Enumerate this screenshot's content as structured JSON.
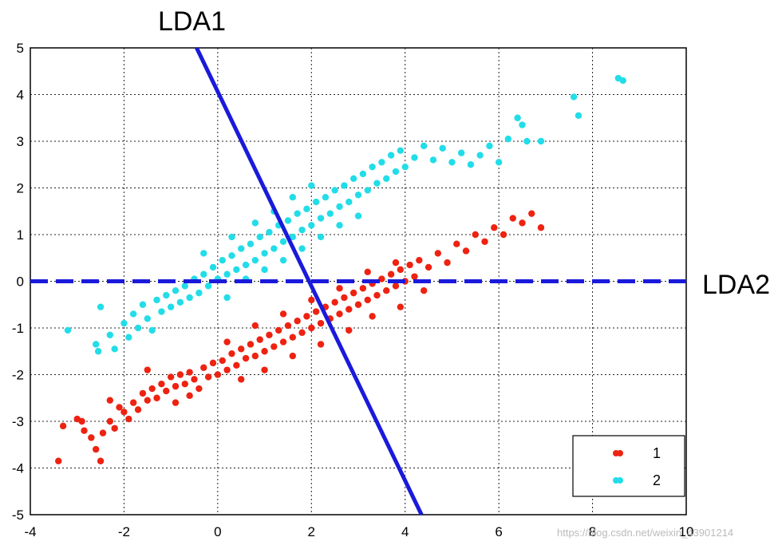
{
  "chart_data": {
    "type": "scatter",
    "xlim": [
      -4,
      10
    ],
    "ylim": [
      -5,
      5
    ],
    "x_ticks": [
      "-4",
      "-2",
      "0",
      "2",
      "4",
      "6",
      "8",
      "10"
    ],
    "y_ticks": [
      "5",
      "4",
      "3",
      "2",
      "1",
      "0",
      "-1",
      "-2",
      "-3",
      "-4",
      "-5"
    ],
    "grid": true,
    "legend_position": "bottom-right",
    "lines": [
      {
        "name": "LDA1",
        "style": "solid",
        "color": "#1a1adb",
        "points": [
          [
            -0.45,
            5.0
          ],
          [
            4.35,
            -5.0
          ]
        ]
      },
      {
        "name": "LDA2",
        "style": "dashed",
        "color": "#1a1adb",
        "points": [
          [
            -4,
            0.0
          ],
          [
            10,
            0.0
          ]
        ]
      }
    ],
    "series": [
      {
        "name": "1",
        "color": "#ee2211",
        "points": [
          [
            -3.4,
            -3.85
          ],
          [
            -3.3,
            -3.1
          ],
          [
            -3.0,
            -2.95
          ],
          [
            -2.9,
            -3.0
          ],
          [
            -2.85,
            -3.2
          ],
          [
            -2.7,
            -3.35
          ],
          [
            -2.6,
            -3.6
          ],
          [
            -2.5,
            -3.85
          ],
          [
            -2.45,
            -3.25
          ],
          [
            -2.3,
            -3.0
          ],
          [
            -2.2,
            -3.15
          ],
          [
            -2.1,
            -2.7
          ],
          [
            -2.0,
            -2.8
          ],
          [
            -1.9,
            -2.95
          ],
          [
            -1.8,
            -2.6
          ],
          [
            -1.7,
            -2.75
          ],
          [
            -1.6,
            -2.4
          ],
          [
            -1.5,
            -2.55
          ],
          [
            -1.4,
            -2.3
          ],
          [
            -1.3,
            -2.5
          ],
          [
            -1.2,
            -2.2
          ],
          [
            -1.1,
            -2.35
          ],
          [
            -1.0,
            -2.05
          ],
          [
            -0.9,
            -2.25
          ],
          [
            -0.8,
            -2.0
          ],
          [
            -0.7,
            -2.2
          ],
          [
            -0.6,
            -1.95
          ],
          [
            -0.5,
            -2.1
          ],
          [
            -0.4,
            -2.3
          ],
          [
            -0.3,
            -1.85
          ],
          [
            -0.2,
            -2.05
          ],
          [
            -0.1,
            -1.75
          ],
          [
            0.0,
            -2.0
          ],
          [
            0.1,
            -1.7
          ],
          [
            0.2,
            -1.9
          ],
          [
            0.3,
            -1.55
          ],
          [
            0.4,
            -1.8
          ],
          [
            0.5,
            -1.45
          ],
          [
            0.6,
            -1.65
          ],
          [
            0.7,
            -1.35
          ],
          [
            0.8,
            -1.6
          ],
          [
            0.9,
            -1.25
          ],
          [
            1.0,
            -1.5
          ],
          [
            1.1,
            -1.15
          ],
          [
            1.2,
            -1.4
          ],
          [
            1.3,
            -1.05
          ],
          [
            1.4,
            -1.3
          ],
          [
            1.5,
            -0.95
          ],
          [
            1.6,
            -1.2
          ],
          [
            1.7,
            -0.85
          ],
          [
            1.8,
            -1.1
          ],
          [
            1.9,
            -0.75
          ],
          [
            2.0,
            -1.0
          ],
          [
            2.1,
            -0.65
          ],
          [
            2.2,
            -0.9
          ],
          [
            2.3,
            -0.55
          ],
          [
            2.4,
            -0.8
          ],
          [
            2.5,
            -0.45
          ],
          [
            2.6,
            -0.7
          ],
          [
            2.7,
            -0.35
          ],
          [
            2.8,
            -0.6
          ],
          [
            2.9,
            -0.25
          ],
          [
            3.0,
            -0.5
          ],
          [
            3.1,
            -0.15
          ],
          [
            3.2,
            -0.4
          ],
          [
            3.3,
            -0.05
          ],
          [
            3.4,
            -0.3
          ],
          [
            3.5,
            0.05
          ],
          [
            3.6,
            -0.2
          ],
          [
            3.7,
            0.15
          ],
          [
            3.8,
            -0.1
          ],
          [
            3.9,
            0.25
          ],
          [
            4.0,
            0.0
          ],
          [
            4.1,
            0.35
          ],
          [
            4.2,
            0.1
          ],
          [
            4.3,
            0.45
          ],
          [
            4.5,
            0.3
          ],
          [
            4.7,
            0.6
          ],
          [
            4.9,
            0.4
          ],
          [
            5.1,
            0.8
          ],
          [
            5.3,
            0.65
          ],
          [
            5.5,
            1.0
          ],
          [
            5.7,
            0.85
          ],
          [
            5.9,
            1.15
          ],
          [
            6.1,
            1.0
          ],
          [
            6.3,
            1.35
          ],
          [
            6.5,
            1.25
          ],
          [
            6.7,
            1.45
          ],
          [
            6.9,
            1.15
          ],
          [
            -0.6,
            -2.45
          ],
          [
            -0.9,
            -2.6
          ],
          [
            0.5,
            -2.1
          ],
          [
            1.0,
            -1.9
          ],
          [
            1.6,
            -1.6
          ],
          [
            2.2,
            -1.35
          ],
          [
            2.8,
            -1.05
          ],
          [
            3.3,
            -0.75
          ],
          [
            3.9,
            -0.55
          ],
          [
            4.4,
            -0.2
          ],
          [
            0.2,
            -1.3
          ],
          [
            0.8,
            -0.95
          ],
          [
            1.4,
            -0.7
          ],
          [
            2.0,
            -0.4
          ],
          [
            2.6,
            -0.15
          ],
          [
            3.2,
            0.2
          ],
          [
            3.8,
            0.4
          ],
          [
            -1.5,
            -1.9
          ],
          [
            -2.3,
            -2.55
          ]
        ]
      },
      {
        "name": "2",
        "color": "#22dde8",
        "points": [
          [
            -3.2,
            -1.05
          ],
          [
            -2.6,
            -1.35
          ],
          [
            -2.55,
            -1.5
          ],
          [
            -2.5,
            -0.55
          ],
          [
            -2.3,
            -1.15
          ],
          [
            -2.2,
            -1.45
          ],
          [
            -2.0,
            -0.9
          ],
          [
            -1.9,
            -1.2
          ],
          [
            -1.8,
            -0.7
          ],
          [
            -1.7,
            -1.0
          ],
          [
            -1.6,
            -0.5
          ],
          [
            -1.5,
            -0.8
          ],
          [
            -1.4,
            -1.05
          ],
          [
            -1.3,
            -0.4
          ],
          [
            -1.2,
            -0.65
          ],
          [
            -1.1,
            -0.3
          ],
          [
            -1.0,
            -0.55
          ],
          [
            -0.9,
            -0.2
          ],
          [
            -0.8,
            -0.45
          ],
          [
            -0.7,
            -0.1
          ],
          [
            -0.6,
            -0.35
          ],
          [
            -0.5,
            0.05
          ],
          [
            -0.4,
            -0.25
          ],
          [
            -0.3,
            0.15
          ],
          [
            -0.2,
            -0.1
          ],
          [
            -0.1,
            0.3
          ],
          [
            0.0,
            0.05
          ],
          [
            0.1,
            0.45
          ],
          [
            0.2,
            0.15
          ],
          [
            0.3,
            0.55
          ],
          [
            0.4,
            0.25
          ],
          [
            0.5,
            0.7
          ],
          [
            0.6,
            0.35
          ],
          [
            0.7,
            0.8
          ],
          [
            0.8,
            0.45
          ],
          [
            0.9,
            0.95
          ],
          [
            1.0,
            0.6
          ],
          [
            1.1,
            1.05
          ],
          [
            1.2,
            0.7
          ],
          [
            1.3,
            1.2
          ],
          [
            1.4,
            0.85
          ],
          [
            1.5,
            1.3
          ],
          [
            1.6,
            0.95
          ],
          [
            1.7,
            1.45
          ],
          [
            1.8,
            1.1
          ],
          [
            1.9,
            1.55
          ],
          [
            2.0,
            1.2
          ],
          [
            2.1,
            1.7
          ],
          [
            2.2,
            1.35
          ],
          [
            2.3,
            1.8
          ],
          [
            2.4,
            1.45
          ],
          [
            2.5,
            1.95
          ],
          [
            2.6,
            1.6
          ],
          [
            2.7,
            2.05
          ],
          [
            2.8,
            1.7
          ],
          [
            2.9,
            2.2
          ],
          [
            3.0,
            1.85
          ],
          [
            3.1,
            2.3
          ],
          [
            3.2,
            1.95
          ],
          [
            3.3,
            2.45
          ],
          [
            3.4,
            2.1
          ],
          [
            3.5,
            2.55
          ],
          [
            3.6,
            2.2
          ],
          [
            3.7,
            2.7
          ],
          [
            3.8,
            2.35
          ],
          [
            3.9,
            2.8
          ],
          [
            4.0,
            2.45
          ],
          [
            4.2,
            2.65
          ],
          [
            4.4,
            2.9
          ],
          [
            4.6,
            2.6
          ],
          [
            4.8,
            2.85
          ],
          [
            5.0,
            2.55
          ],
          [
            5.2,
            2.75
          ],
          [
            5.4,
            2.5
          ],
          [
            5.6,
            2.7
          ],
          [
            5.8,
            2.9
          ],
          [
            6.0,
            2.55
          ],
          [
            6.2,
            3.05
          ],
          [
            6.4,
            3.5
          ],
          [
            6.5,
            3.35
          ],
          [
            6.6,
            3.0
          ],
          [
            6.9,
            3.0
          ],
          [
            7.6,
            3.95
          ],
          [
            7.7,
            3.55
          ],
          [
            8.55,
            4.35
          ],
          [
            8.65,
            4.3
          ],
          [
            0.2,
            -0.35
          ],
          [
            0.6,
            0.05
          ],
          [
            1.0,
            0.25
          ],
          [
            1.4,
            0.45
          ],
          [
            1.8,
            0.7
          ],
          [
            2.2,
            0.95
          ],
          [
            2.6,
            1.2
          ],
          [
            3.0,
            1.4
          ],
          [
            0.8,
            1.25
          ],
          [
            1.2,
            1.5
          ],
          [
            1.6,
            1.8
          ],
          [
            2.0,
            2.05
          ],
          [
            -0.3,
            0.6
          ],
          [
            0.3,
            0.95
          ]
        ]
      }
    ]
  },
  "labels": {
    "lda1": "LDA1",
    "lda2": "LDA2",
    "legend_1": "1",
    "legend_2": "2",
    "watermark": "https://blog.csdn.net/weixin_43901214"
  }
}
